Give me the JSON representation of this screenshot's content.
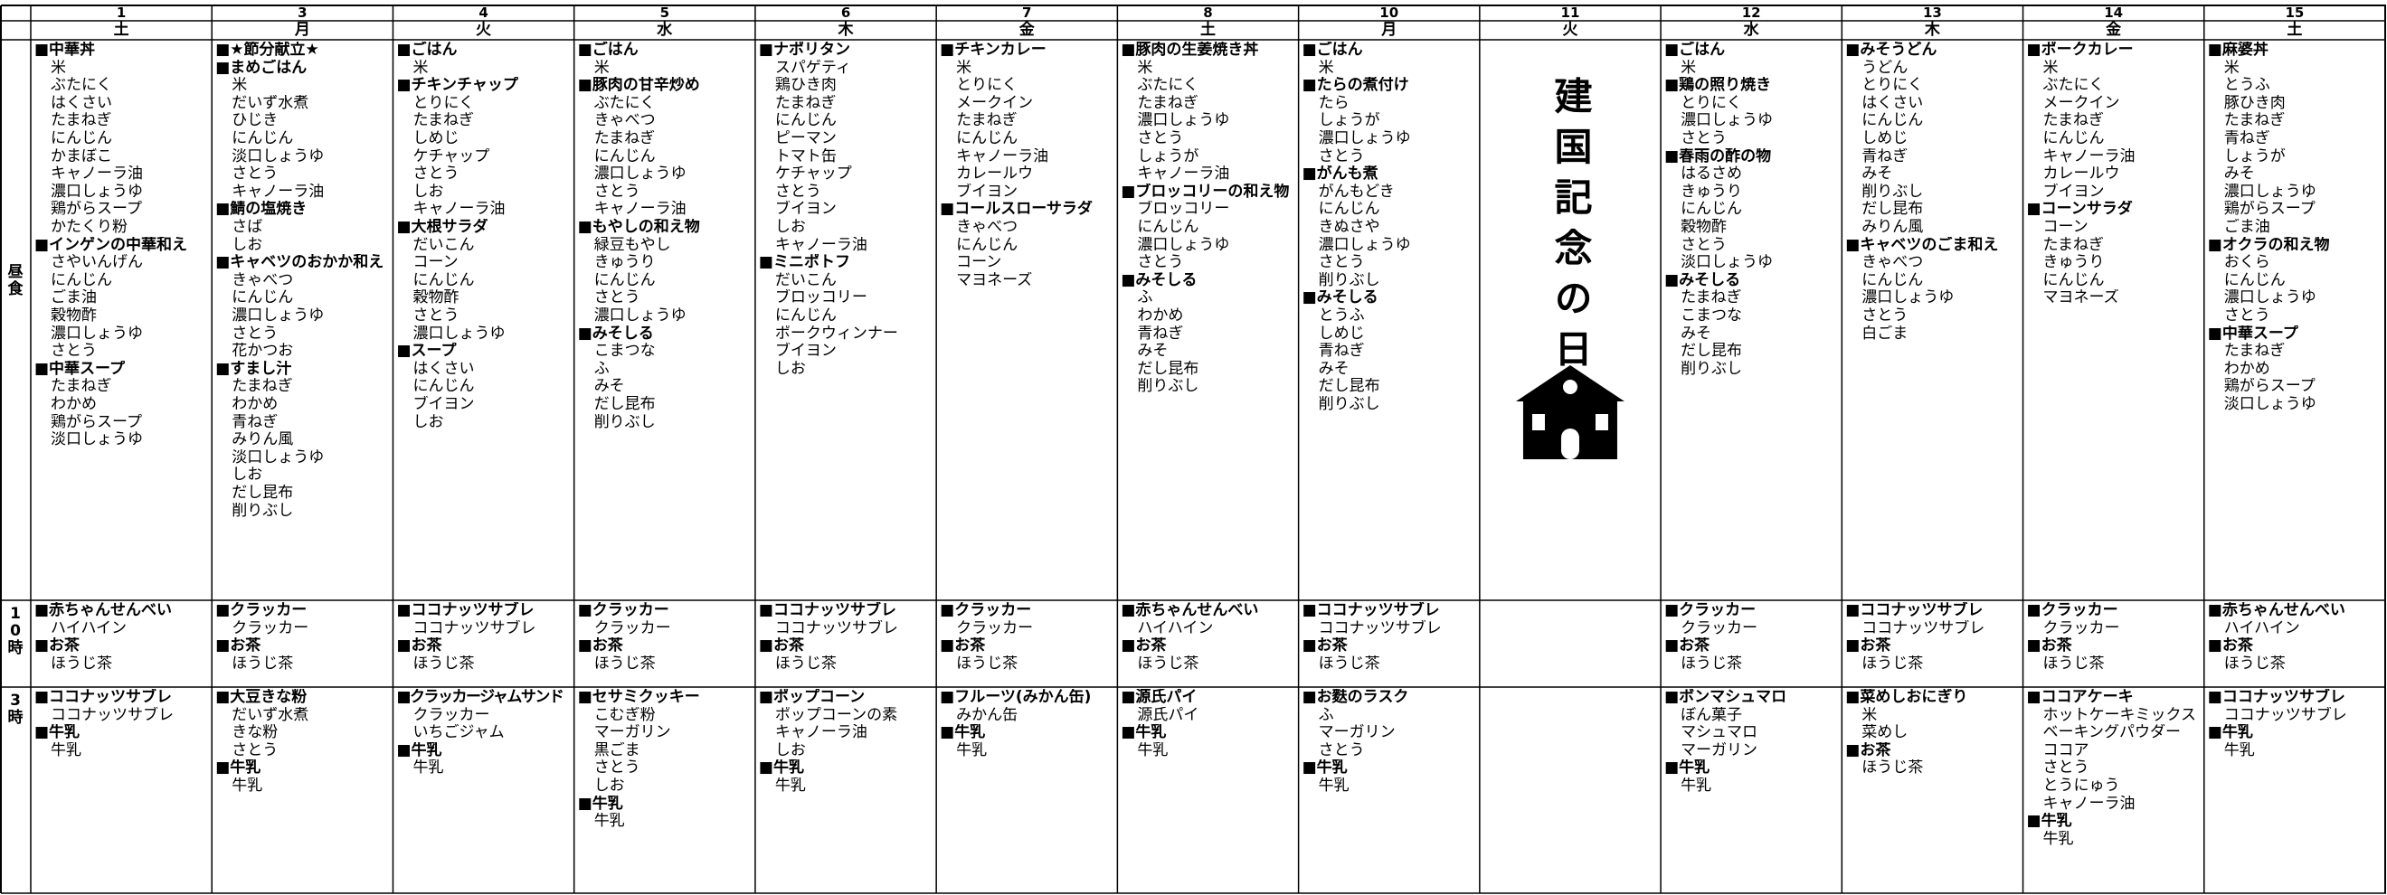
{
  "row_labels": [
    "昼食",
    "10時",
    "3時"
  ],
  "days": [
    {
      "date": "1",
      "weekday": "土",
      "lunch": [
        "■中華丼",
        "米",
        "ぶたにく",
        "はくさい",
        "たまねぎ",
        "にんじん",
        "かまぼこ",
        "キャノーラ油",
        "濃口しょうゆ",
        "鶏がらスープ",
        "かたくり粉",
        "■インゲンの中華和え",
        "さやいんげん",
        "にんじん",
        "ごま油",
        "穀物酢",
        "濃口しょうゆ",
        "さとう",
        "■中華スープ",
        "たまねぎ",
        "わかめ",
        "鶏がらスープ",
        "淡口しょうゆ"
      ],
      "snack_10": [
        "■赤ちゃんせんべい",
        "ハイハイン",
        "■お茶",
        "ほうじ茶"
      ],
      "snack_3": [
        "■ココナッツサブレ",
        "ココナッツサブレ",
        "■牛乳",
        "牛乳"
      ]
    },
    {
      "date": "3",
      "weekday": "月",
      "lunch": [
        "■★節分献立★",
        "■まめごはん",
        "米",
        "だいず水煮",
        "ひじき",
        "にんじん",
        "淡口しょうゆ",
        "さとう",
        "キャノーラ油",
        "■鯖の塩焼き",
        "さば",
        "しお",
        "■キャベツのおかか和え",
        "きゃべつ",
        "にんじん",
        "濃口しょうゆ",
        "さとう",
        "花かつお",
        "■すまし汁",
        "たまねぎ",
        "わかめ",
        "青ねぎ",
        "みりん風",
        "淡口しょうゆ",
        "しお",
        "だし昆布",
        "削りぶし"
      ],
      "snack_10": [
        "■クラッカー",
        "クラッカー",
        "■お茶",
        "ほうじ茶"
      ],
      "snack_3": [
        "■大豆きな粉",
        "だいず水煮",
        "きな粉",
        "さとう",
        "■牛乳",
        "牛乳"
      ]
    },
    {
      "date": "4",
      "weekday": "火",
      "lunch": [
        "■ごはん",
        "米",
        "■チキンチャップ",
        "とりにく",
        "たまねぎ",
        "しめじ",
        "ケチャップ",
        "さとう",
        "しお",
        "キャノーラ油",
        "■大根サラダ",
        "だいこん",
        "コーン",
        "にんじん",
        "穀物酢",
        "さとう",
        "濃口しょうゆ",
        "■スープ",
        "はくさい",
        "にんじん",
        "ブイヨン",
        "しお"
      ],
      "snack_10": [
        "■ココナッツサブレ",
        "ココナッツサブレ",
        "■お茶",
        "ほうじ茶"
      ],
      "snack_3": [
        "■クラッカージャムサンド",
        "クラッカー",
        "いちごジャム",
        "■牛乳",
        "牛乳"
      ]
    },
    {
      "date": "5",
      "weekday": "水",
      "lunch": [
        "■ごはん",
        "米",
        "■豚肉の甘辛炒め",
        "ぶたにく",
        "きゃべつ",
        "たまねぎ",
        "にんじん",
        "濃口しょうゆ",
        "さとう",
        "キャノーラ油",
        "■もやしの和え物",
        "緑豆もやし",
        "きゅうり",
        "にんじん",
        "さとう",
        "濃口しょうゆ",
        "■みそしる",
        "こまつな",
        "ふ",
        "みそ",
        "だし昆布",
        "削りぶし"
      ],
      "snack_10": [
        "■クラッカー",
        "クラッカー",
        "■お茶",
        "ほうじ茶"
      ],
      "snack_3": [
        "■セサミクッキー",
        "こむぎ粉",
        "マーガリン",
        "黒ごま",
        "さとう",
        "しお",
        "■牛乳",
        "牛乳"
      ]
    },
    {
      "date": "6",
      "weekday": "木",
      "lunch": [
        "■ナポリタン",
        "スパゲティ",
        "鶏ひき肉",
        "たまねぎ",
        "にんじん",
        "ピーマン",
        "トマト缶",
        "ケチャップ",
        "さとう",
        "ブイヨン",
        "しお",
        "キャノーラ油",
        "■ミニポトフ",
        "だいこん",
        "ブロッコリー",
        "にんじん",
        "ポークウィンナー",
        "ブイヨン",
        "しお"
      ],
      "snack_10": [
        "■ココナッツサブレ",
        "ココナッツサブレ",
        "■お茶",
        "ほうじ茶"
      ],
      "snack_3": [
        "■ポップコーン",
        "ポップコーンの素",
        "キャノーラ油",
        "しお",
        "■牛乳",
        "牛乳"
      ]
    },
    {
      "date": "7",
      "weekday": "金",
      "lunch": [
        "■チキンカレー",
        "米",
        "とりにく",
        "メークイン",
        "たまねぎ",
        "にんじん",
        "キャノーラ油",
        "カレールウ",
        "ブイヨン",
        "■コールスローサラダ",
        "きゃべつ",
        "にんじん",
        "コーン",
        "マヨネーズ"
      ],
      "snack_10": [
        "■クラッカー",
        "クラッカー",
        "■お茶",
        "ほうじ茶"
      ],
      "snack_3": [
        "■フルーツ(みかん缶)",
        "みかん缶",
        "■牛乳",
        "牛乳"
      ]
    },
    {
      "date": "8",
      "weekday": "土",
      "lunch": [
        "■豚肉の生姜焼き丼",
        "米",
        "ぶたにく",
        "たまねぎ",
        "濃口しょうゆ",
        "さとう",
        "しょうが",
        "キャノーラ油",
        "■ブロッコリーの和え物",
        "ブロッコリー",
        "にんじん",
        "濃口しょうゆ",
        "さとう",
        "■みそしる",
        "ふ",
        "わかめ",
        "青ねぎ",
        "みそ",
        "だし昆布",
        "削りぶし"
      ],
      "snack_10": [
        "■赤ちゃんせんべい",
        "ハイハイン",
        "■お茶",
        "ほうじ茶"
      ],
      "snack_3": [
        "■源氏パイ",
        "源氏パイ",
        "■牛乳",
        "牛乳"
      ]
    },
    {
      "date": "10",
      "weekday": "月",
      "lunch": [
        "■ごはん",
        "米",
        "■たらの煮付け",
        "たら",
        "しょうが",
        "濃口しょうゆ",
        "さとう",
        "■がんも煮",
        "がんもどき",
        "にんじん",
        "きぬさや",
        "濃口しょうゆ",
        "さとう",
        "削りぶし",
        "■みそしる",
        "とうふ",
        "しめじ",
        "青ねぎ",
        "みそ",
        "だし昆布",
        "削りぶし"
      ],
      "snack_10": [
        "■ココナッツサブレ",
        "ココナッツサブレ",
        "■お茶",
        "ほうじ茶"
      ],
      "snack_3": [
        "■お麩のラスク",
        "ふ",
        "マーガリン",
        "さとう",
        "■牛乳",
        "牛乳"
      ]
    },
    {
      "date": "11",
      "weekday": "火",
      "holiday": "建国記念の日"
    },
    {
      "date": "12",
      "weekday": "水",
      "lunch": [
        "■ごはん",
        "米",
        "■鶏の照り焼き",
        "とりにく",
        "濃口しょうゆ",
        "さとう",
        "■春雨の酢の物",
        "はるさめ",
        "きゅうり",
        "にんじん",
        "穀物酢",
        "さとう",
        "淡口しょうゆ",
        "■みそしる",
        "たまねぎ",
        "こまつな",
        "みそ",
        "だし昆布",
        "削りぶし"
      ],
      "snack_10": [
        "■クラッカー",
        "クラッカー",
        "■お茶",
        "ほうじ茶"
      ],
      "snack_3": [
        "■ボンマシュマロ",
        "ぼん菓子",
        "マシュマロ",
        "マーガリン",
        "■牛乳",
        "牛乳"
      ]
    },
    {
      "date": "13",
      "weekday": "木",
      "lunch": [
        "■みそうどん",
        "うどん",
        "とりにく",
        "はくさい",
        "にんじん",
        "しめじ",
        "青ねぎ",
        "みそ",
        "削りぶし",
        "だし昆布",
        "みりん風",
        "■キャベツのごま和え",
        "きゃべつ",
        "にんじん",
        "濃口しょうゆ",
        "さとう",
        "白ごま"
      ],
      "snack_10": [
        "■ココナッツサブレ",
        "ココナッツサブレ",
        "■お茶",
        "ほうじ茶"
      ],
      "snack_3": [
        "■菜めしおにぎり",
        "米",
        "菜めし",
        "■お茶",
        "ほうじ茶"
      ]
    },
    {
      "date": "14",
      "weekday": "金",
      "lunch": [
        "■ポークカレー",
        "米",
        "ぶたにく",
        "メークイン",
        "たまねぎ",
        "にんじん",
        "キャノーラ油",
        "カレールウ",
        "ブイヨン",
        "■コーンサラダ",
        "コーン",
        "たまねぎ",
        "きゅうり",
        "にんじん",
        "マヨネーズ"
      ],
      "snack_10": [
        "■クラッカー",
        "クラッカー",
        "■お茶",
        "ほうじ茶"
      ],
      "snack_3": [
        "■ココアケーキ",
        "ホットケーキミックス",
        "ベーキングパウダー",
        "ココア",
        "さとう",
        "とうにゅう",
        "キャノーラ油",
        "■牛乳",
        "牛乳"
      ]
    },
    {
      "date": "15",
      "weekday": "土",
      "lunch": [
        "■麻婆丼",
        "米",
        "とうふ",
        "豚ひき肉",
        "たまねぎ",
        "青ねぎ",
        "しょうが",
        "みそ",
        "濃口しょうゆ",
        "鶏がらスープ",
        "ごま油",
        "■オクラの和え物",
        "おくら",
        "にんじん",
        "濃口しょうゆ",
        "さとう",
        "■中華スープ",
        "たまねぎ",
        "わかめ",
        "鶏がらスープ",
        "淡口しょうゆ"
      ],
      "snack_10": [
        "■赤ちゃんせんべい",
        "ハイハイン",
        "■お茶",
        "ほうじ茶"
      ],
      "snack_3": [
        "■ココナッツサブレ",
        "ココナッツサブレ",
        "■牛乳",
        "牛乳"
      ]
    }
  ]
}
